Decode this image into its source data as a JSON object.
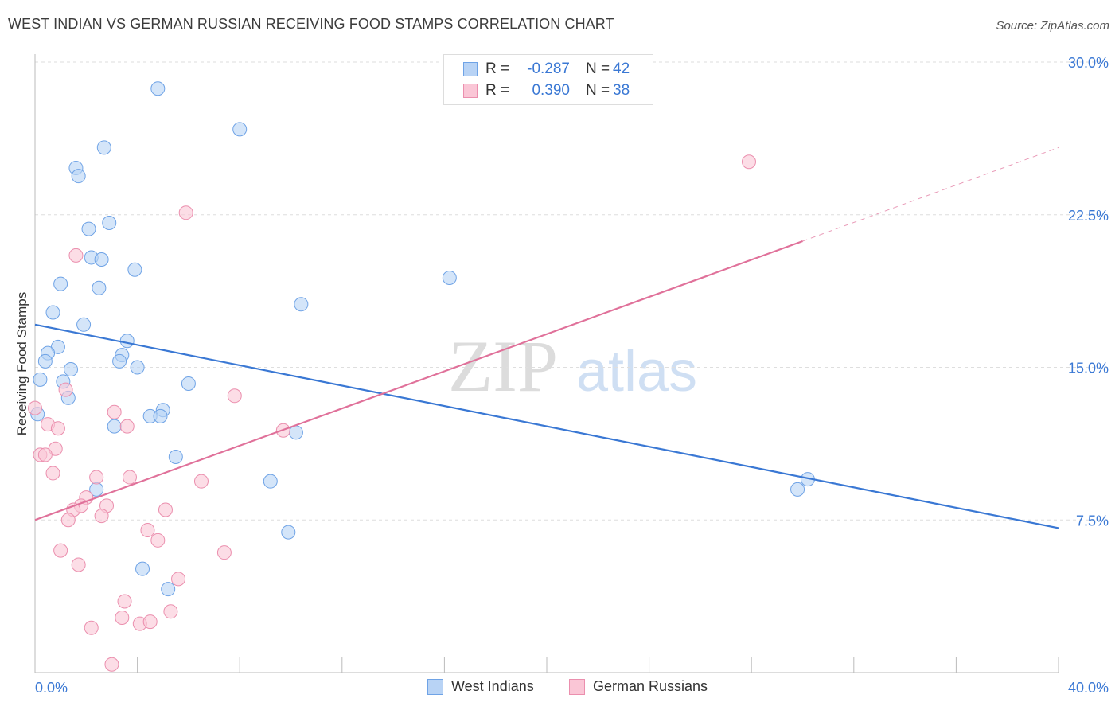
{
  "title": "WEST INDIAN VS GERMAN RUSSIAN RECEIVING FOOD STAMPS CORRELATION CHART",
  "source": "Source: ZipAtlas.com",
  "watermark": {
    "zip": "ZIP",
    "atlas": "atlas"
  },
  "legend": {
    "r_label": "R =",
    "n_label": "N =",
    "series": [
      {
        "name": "West Indians",
        "r": "-0.287",
        "n": "42",
        "fill": "#b8d3f5",
        "stroke": "#6fa3e6"
      },
      {
        "name": "German Russians",
        "r": "0.390",
        "n": "38",
        "fill": "#fac6d6",
        "stroke": "#eb8fae"
      }
    ]
  },
  "chart_data": {
    "type": "scatter",
    "title": "WEST INDIAN VS GERMAN RUSSIAN RECEIVING FOOD STAMPS CORRELATION CHART",
    "xlabel": "",
    "ylabel": "Receiving Food Stamps",
    "xlim": [
      0,
      40
    ],
    "ylim": [
      0,
      30
    ],
    "x_ticks": [
      {
        "value": 0,
        "label": "0.0%"
      },
      {
        "value": 40,
        "label": "40.0%"
      }
    ],
    "y_ticks": [
      {
        "value": 7.5,
        "label": "7.5%"
      },
      {
        "value": 15,
        "label": "15.0%"
      },
      {
        "value": 22.5,
        "label": "22.5%"
      },
      {
        "value": 30,
        "label": "30.0%"
      }
    ],
    "grid": true,
    "legend_placement": "top-center and bottom",
    "series": [
      {
        "name": "West Indians",
        "color": "#6fa3e6",
        "fill": "#b8d3f5",
        "line_color": "#3a78d4",
        "trend": {
          "x1": 0,
          "y1": 17.1,
          "x2": 40,
          "y2": 7.1
        },
        "points": [
          {
            "x": 4.8,
            "y": 28.7
          },
          {
            "x": 8.0,
            "y": 26.7
          },
          {
            "x": 2.7,
            "y": 25.8
          },
          {
            "x": 1.6,
            "y": 24.8
          },
          {
            "x": 1.7,
            "y": 24.4
          },
          {
            "x": 2.9,
            "y": 22.1
          },
          {
            "x": 2.1,
            "y": 21.8
          },
          {
            "x": 2.2,
            "y": 20.4
          },
          {
            "x": 2.6,
            "y": 20.3
          },
          {
            "x": 3.9,
            "y": 19.8
          },
          {
            "x": 1.0,
            "y": 19.1
          },
          {
            "x": 2.5,
            "y": 18.9
          },
          {
            "x": 16.2,
            "y": 19.4
          },
          {
            "x": 10.4,
            "y": 18.1
          },
          {
            "x": 0.7,
            "y": 17.7
          },
          {
            "x": 1.9,
            "y": 17.1
          },
          {
            "x": 3.6,
            "y": 16.3
          },
          {
            "x": 0.9,
            "y": 16.0
          },
          {
            "x": 0.5,
            "y": 15.7
          },
          {
            "x": 3.4,
            "y": 15.6
          },
          {
            "x": 0.4,
            "y": 15.3
          },
          {
            "x": 3.3,
            "y": 15.3
          },
          {
            "x": 1.4,
            "y": 14.9
          },
          {
            "x": 4.0,
            "y": 15.0
          },
          {
            "x": 0.2,
            "y": 14.4
          },
          {
            "x": 1.1,
            "y": 14.3
          },
          {
            "x": 6.0,
            "y": 14.2
          },
          {
            "x": 1.3,
            "y": 13.5
          },
          {
            "x": 5.0,
            "y": 12.9
          },
          {
            "x": 4.5,
            "y": 12.6
          },
          {
            "x": 4.9,
            "y": 12.6
          },
          {
            "x": 0.1,
            "y": 12.7
          },
          {
            "x": 3.1,
            "y": 12.1
          },
          {
            "x": 10.2,
            "y": 11.8
          },
          {
            "x": 5.5,
            "y": 10.6
          },
          {
            "x": 9.2,
            "y": 9.4
          },
          {
            "x": 30.2,
            "y": 9.5
          },
          {
            "x": 29.8,
            "y": 9.0
          },
          {
            "x": 2.4,
            "y": 9.0
          },
          {
            "x": 9.9,
            "y": 6.9
          },
          {
            "x": 4.2,
            "y": 5.1
          },
          {
            "x": 5.2,
            "y": 4.1
          }
        ]
      },
      {
        "name": "German Russians",
        "color": "#eb8fae",
        "fill": "#fac6d6",
        "line_color": "#e0719a",
        "trend": {
          "x1": 0,
          "y1": 7.5,
          "x2": 30,
          "y2": 21.2
        },
        "trend_dashed": {
          "x1": 30,
          "y1": 21.2,
          "x2": 40,
          "y2": 25.8
        },
        "points": [
          {
            "x": 27.9,
            "y": 25.1
          },
          {
            "x": 5.9,
            "y": 22.6
          },
          {
            "x": 1.6,
            "y": 20.5
          },
          {
            "x": 7.8,
            "y": 13.6
          },
          {
            "x": 1.2,
            "y": 13.9
          },
          {
            "x": 0.0,
            "y": 13.0
          },
          {
            "x": 3.1,
            "y": 12.8
          },
          {
            "x": 0.5,
            "y": 12.2
          },
          {
            "x": 0.9,
            "y": 12.0
          },
          {
            "x": 3.6,
            "y": 12.1
          },
          {
            "x": 9.7,
            "y": 11.9
          },
          {
            "x": 0.8,
            "y": 11.0
          },
          {
            "x": 0.2,
            "y": 10.7
          },
          {
            "x": 0.4,
            "y": 10.7
          },
          {
            "x": 0.7,
            "y": 9.8
          },
          {
            "x": 2.4,
            "y": 9.6
          },
          {
            "x": 3.7,
            "y": 9.6
          },
          {
            "x": 6.5,
            "y": 9.4
          },
          {
            "x": 2.0,
            "y": 8.6
          },
          {
            "x": 1.8,
            "y": 8.2
          },
          {
            "x": 2.8,
            "y": 8.2
          },
          {
            "x": 1.5,
            "y": 8.0
          },
          {
            "x": 5.1,
            "y": 8.0
          },
          {
            "x": 2.6,
            "y": 7.7
          },
          {
            "x": 1.3,
            "y": 7.5
          },
          {
            "x": 4.4,
            "y": 7.0
          },
          {
            "x": 4.8,
            "y": 6.5
          },
          {
            "x": 1.0,
            "y": 6.0
          },
          {
            "x": 7.4,
            "y": 5.9
          },
          {
            "x": 1.7,
            "y": 5.3
          },
          {
            "x": 5.6,
            "y": 4.6
          },
          {
            "x": 3.5,
            "y": 3.5
          },
          {
            "x": 5.3,
            "y": 3.0
          },
          {
            "x": 3.4,
            "y": 2.7
          },
          {
            "x": 4.1,
            "y": 2.4
          },
          {
            "x": 4.5,
            "y": 2.5
          },
          {
            "x": 2.2,
            "y": 2.2
          },
          {
            "x": 3.0,
            "y": 0.4
          }
        ]
      }
    ]
  }
}
